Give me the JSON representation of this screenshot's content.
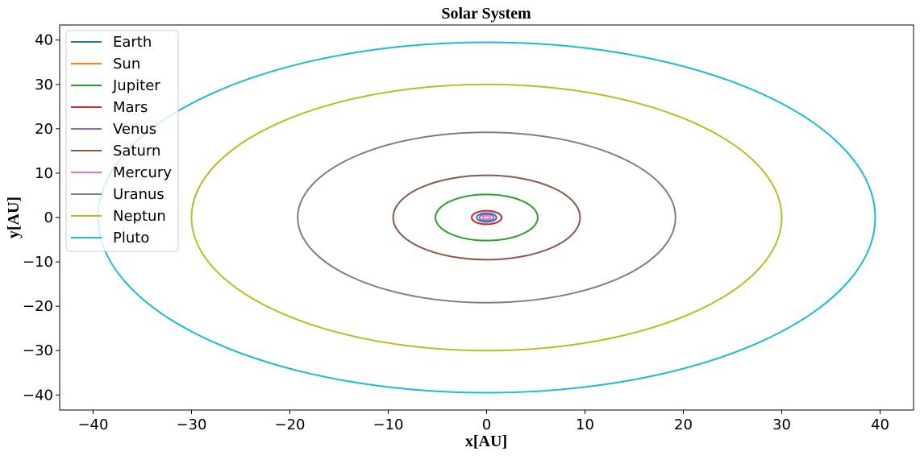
{
  "chart_data": {
    "type": "line",
    "title": "Solar System",
    "xlabel": "x[AU]",
    "ylabel": "y[AU]",
    "xlim": [
      -43.4,
      43.4
    ],
    "ylim": [
      -43.4,
      43.4
    ],
    "xticks": [
      -40,
      -30,
      -20,
      -10,
      0,
      10,
      20,
      30,
      40
    ],
    "yticks": [
      -40,
      -30,
      -20,
      -10,
      0,
      10,
      20,
      30,
      40
    ],
    "grid": false,
    "legend_position": "top-left",
    "series": [
      {
        "name": "Earth",
        "color": "#1f77b4",
        "orbit_radius": 1.0,
        "center": [
          0,
          0
        ]
      },
      {
        "name": "Sun",
        "color": "#ff7f0e",
        "orbit_radius": 0.0,
        "center": [
          0,
          0
        ]
      },
      {
        "name": "Jupiter",
        "color": "#2ca02c",
        "orbit_radius": 5.2,
        "center": [
          0,
          0
        ]
      },
      {
        "name": "Mars",
        "color": "#d62728",
        "orbit_radius": 1.52,
        "center": [
          0,
          0
        ]
      },
      {
        "name": "Venus",
        "color": "#9467bd",
        "orbit_radius": 0.72,
        "center": [
          0,
          0
        ]
      },
      {
        "name": "Saturn",
        "color": "#8c564b",
        "orbit_radius": 9.5,
        "center": [
          0,
          0
        ]
      },
      {
        "name": "Mercury",
        "color": "#e377c2",
        "orbit_radius": 0.39,
        "center": [
          0,
          0
        ]
      },
      {
        "name": "Uranus",
        "color": "#7f7f7f",
        "orbit_radius": 19.2,
        "center": [
          0,
          0
        ]
      },
      {
        "name": "Neptun",
        "color": "#bcbd22",
        "orbit_radius": 30.0,
        "center": [
          0,
          0
        ]
      },
      {
        "name": "Pluto",
        "color": "#17becf",
        "orbit_radius": 39.5,
        "center": [
          0,
          0
        ]
      }
    ]
  }
}
